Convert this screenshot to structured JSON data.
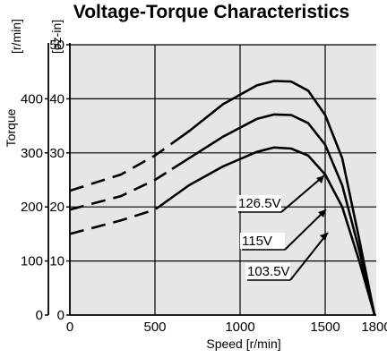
{
  "chart_data": {
    "type": "line",
    "title": "Voltage-Torque Characteristics",
    "xlabel": "Speed [r/min]",
    "ylabel": "Torque",
    "y_units": [
      "[r/min]",
      "[oz-in]"
    ],
    "xlim": [
      0,
      1800
    ],
    "ylim": [
      0,
      50
    ],
    "x_ticks": [
      0,
      500,
      1000,
      1500,
      1800
    ],
    "y_ticks": [
      0,
      10,
      20,
      30,
      40,
      50
    ],
    "y2_ticks": [
      0,
      100,
      200,
      300,
      400
    ],
    "grid": true,
    "background": "#e6e6e6",
    "series": [
      {
        "name": "126.5V",
        "x": [
          0,
          300,
          500,
          700,
          900,
          1100,
          1200,
          1300,
          1400,
          1500,
          1600,
          1700,
          1790
        ],
        "y": [
          23,
          26,
          29.5,
          34,
          39,
          42.5,
          43.3,
          43.2,
          41.5,
          37,
          29,
          14,
          0
        ],
        "dashed_until": 600
      },
      {
        "name": "115V",
        "x": [
          0,
          300,
          500,
          700,
          900,
          1100,
          1200,
          1300,
          1400,
          1500,
          1600,
          1700,
          1790
        ],
        "y": [
          19.5,
          22,
          25,
          29,
          33,
          36.3,
          37.1,
          37,
          35.5,
          31.5,
          24,
          12,
          0
        ],
        "dashed_until": 600
      },
      {
        "name": "103.5V",
        "x": [
          0,
          300,
          500,
          700,
          900,
          1100,
          1200,
          1300,
          1400,
          1500,
          1600,
          1700,
          1790
        ],
        "y": [
          15,
          17.5,
          19.5,
          24,
          27.5,
          30.2,
          31,
          30.8,
          29.5,
          26,
          20,
          10,
          0
        ],
        "dashed_until": 520
      }
    ]
  }
}
